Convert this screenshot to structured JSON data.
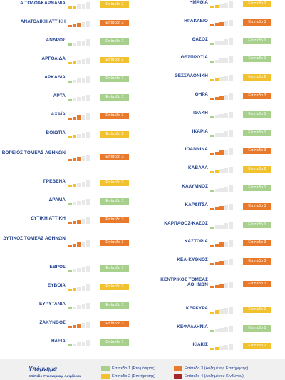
{
  "colors": {
    "level1": "#a8d08d",
    "level2": "#f2c12e",
    "level3": "#ea7a2b",
    "level4": "#a5272d",
    "bar_empty": "#e8e8e8"
  },
  "left": [
    {
      "name": "ΑΙΤΩΛΟΑΚΑΡΝΑΝΙΑ",
      "level": 2,
      "label": "Επίπεδο 2"
    },
    {
      "name": "ΑΝΑΤΟΛΙΚΗ ΑΤΤΙΚΗ",
      "level": 3,
      "label": "Επίπεδο 3"
    },
    {
      "name": "ΑΝΔΡΟΣ",
      "level": 1,
      "label": "Επίπεδο 1"
    },
    {
      "name": "ΑΡΓΟΛΙΔΑ",
      "level": 2,
      "label": "Επίπεδο 2"
    },
    {
      "name": "ΑΡΚΑΔΙΑ",
      "level": 1,
      "label": "Επίπεδο 1"
    },
    {
      "name": "ΑΡΤΑ",
      "level": 1,
      "label": "Επίπεδο 1"
    },
    {
      "name": "ΑΧΑΪΑ",
      "level": 3,
      "label": "Επίπεδο 3"
    },
    {
      "name": "ΒΟΙΩΤΙΑ",
      "level": 2,
      "label": "Επίπεδο 2"
    },
    {
      "name": "ΒΟΡΕΙΟΣ ΤΟΜΕΑΣ ΑΘΗΝΩΝ",
      "level": 3,
      "label": "Επίπεδο 3",
      "two": true
    },
    {
      "name": "ΓΡΕΒΕΝΑ",
      "level": 2,
      "label": "Επίπεδο 2"
    },
    {
      "name": "ΔΡΑΜΑ",
      "level": 1,
      "label": "Επίπεδο 1"
    },
    {
      "name": "ΔΥΤΙΚΗ ΑΤΤΙΚΗ",
      "level": 3,
      "label": "Επίπεδο 3"
    },
    {
      "name": "ΔΥΤΙΚΟΣ ΤΟΜΕΑΣ ΑΘΗΝΩΝ",
      "level": 3,
      "label": "Επίπεδο 3",
      "two": true
    },
    {
      "name": "ΕΒΡΟΣ",
      "level": 1,
      "label": "Επίπεδο 1"
    },
    {
      "name": "ΕΥΒΟΙΑ",
      "level": 2,
      "label": "Επίπεδο 2"
    },
    {
      "name": "ΕΥΡΥΤΑΝΙΑ",
      "level": 1,
      "label": "Επίπεδο 1"
    },
    {
      "name": "ΖΑΚΥΝΘΟΣ",
      "level": 3,
      "label": "Επίπεδο 3"
    },
    {
      "name": "ΗΛΕΙΑ",
      "level": 1,
      "label": "Επίπεδο 1"
    }
  ],
  "right": [
    {
      "name": "ΗΜΑΘΙΑ",
      "level": 2,
      "label": "Επίπεδο 2"
    },
    {
      "name": "ΗΡΑΚΛΕΙΟ",
      "level": 3,
      "label": "Επίπεδο 3"
    },
    {
      "name": "ΘΑΣΟΣ",
      "level": 1,
      "label": "Επίπεδο 1"
    },
    {
      "name": "ΘΕΣΠΡΩΤΙΑ",
      "level": 1,
      "label": "Επίπεδο 1"
    },
    {
      "name": "ΘΕΣΣΑΛΟΝΙΚΗ",
      "level": 2,
      "label": "Επίπεδο 2"
    },
    {
      "name": "ΘΗΡΑ",
      "level": 3,
      "label": "Επίπεδο 3"
    },
    {
      "name": "ΙΘΑΚΗ",
      "level": 1,
      "label": "Επίπεδο 1"
    },
    {
      "name": "ΙΚΑΡΙΑ",
      "level": 1,
      "label": "Επίπεδο 1"
    },
    {
      "name": "ΙΩΑΝΝΙΝΑ",
      "level": 3,
      "label": "Επίπεδο 3"
    },
    {
      "name": "ΚΑΒΑΛΑ",
      "level": 2,
      "label": "Επίπεδο 2"
    },
    {
      "name": "ΚΑΛΥΜΝΟΣ",
      "level": 1,
      "label": "Επίπεδο 1"
    },
    {
      "name": "ΚΑΡΔΙΤΣΑ",
      "level": 3,
      "label": "Επίπεδο 3"
    },
    {
      "name": "ΚΑΡΠΑΘΟΣ-ΚΑΣΟΣ",
      "level": 1,
      "label": "Επίπεδο 1"
    },
    {
      "name": "ΚΑΣΤΟΡΙΑ",
      "level": 3,
      "label": "Επίπεδο 3"
    },
    {
      "name": "ΚΕΑ-ΚΥΘΝΟΣ",
      "level": 3,
      "label": "Επίπεδο 3"
    },
    {
      "name": "ΚΕΝΤΡΙΚΟΣ ΤΟΜΕΑΣ ΑΘΗΝΩΝ",
      "level": 3,
      "label": "Επίπεδο 3",
      "two": true
    },
    {
      "name": "ΚΕΡΚΥΡΑ",
      "level": 2,
      "label": "Επίπεδο 2"
    },
    {
      "name": "ΚΕΦΑΛΛΗΝΙΑ",
      "level": 1,
      "label": "Επίπεδο 1"
    },
    {
      "name": "ΚΙΛΚΙΣ",
      "level": 2,
      "label": "Επίπεδο 2"
    }
  ],
  "legend": {
    "title": "Υπόμνημα",
    "subtitle": "Επίπεδο Υγειονομικής Ασφάλειας",
    "items": [
      {
        "label": "Επίπεδο 1 (Ετοιμότητας)",
        "level": 1
      },
      {
        "label": "Επίπεδο 2 (Επιτήρησης)",
        "level": 2
      },
      {
        "label": "Επίπεδο 3 (Αυξημένης Επιτήρησης)",
        "level": 3
      },
      {
        "label": "Επίπεδο 4 (Αυξημένου Κινδύνου)",
        "level": 4
      }
    ]
  }
}
